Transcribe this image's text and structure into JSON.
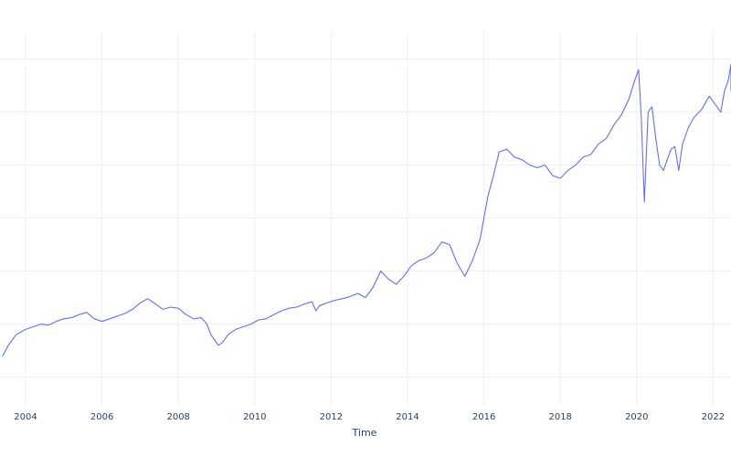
{
  "chart_data": {
    "type": "line",
    "title": "",
    "xlabel": "Time",
    "ylabel": "",
    "x_tick_labels": [
      "2004",
      "2006",
      "2008",
      "2010",
      "2012",
      "2014",
      "2016",
      "2018",
      "2020",
      "2022"
    ],
    "y_tick_labels_visible": false,
    "grid": true,
    "legend": "none",
    "colors": {
      "series": "#636efa",
      "grid": "#ebf0f8",
      "text": "#2a3f5f",
      "background": "#ffffff"
    },
    "xlim": [
      2003.35,
      2022.6
    ],
    "ylim": [
      0,
      700
    ],
    "y_gridlines": [
      30,
      130,
      230,
      330,
      430,
      530,
      630
    ],
    "series": [
      {
        "x": [
          2003.4,
          2003.55,
          2003.75,
          2004.0,
          2004.2,
          2004.4,
          2004.6,
          2004.8,
          2005.0,
          2005.2,
          2005.4,
          2005.6,
          2005.8,
          2006.0,
          2006.2,
          2006.4,
          2006.6,
          2006.8,
          2007.0,
          2007.2,
          2007.4,
          2007.6,
          2007.8,
          2008.0,
          2008.2,
          2008.4,
          2008.6,
          2008.75,
          2008.85,
          2008.95,
          2009.05,
          2009.15,
          2009.3,
          2009.5,
          2009.7,
          2009.9,
          2010.1,
          2010.3,
          2010.5,
          2010.7,
          2010.9,
          2011.1,
          2011.3,
          2011.5,
          2011.6,
          2011.7,
          2011.9,
          2012.1,
          2012.3,
          2012.5,
          2012.7,
          2012.9,
          2013.1,
          2013.3,
          2013.5,
          2013.7,
          2013.9,
          2014.1,
          2014.3,
          2014.5,
          2014.7,
          2014.9,
          2015.1,
          2015.3,
          2015.5,
          2015.7,
          2015.9,
          2016.1,
          2016.25,
          2016.4,
          2016.6,
          2016.8,
          2017.0,
          2017.2,
          2017.4,
          2017.6,
          2017.8,
          2018.0,
          2018.2,
          2018.4,
          2018.6,
          2018.8,
          2019.0,
          2019.2,
          2019.4,
          2019.6,
          2019.8,
          2019.95,
          2020.05,
          2020.12,
          2020.2,
          2020.3,
          2020.4,
          2020.5,
          2020.6,
          2020.7,
          2020.8,
          2020.9,
          2021.0,
          2021.1,
          2021.2,
          2021.35,
          2021.5,
          2021.7,
          2021.9,
          2022.1,
          2022.2,
          2022.3,
          2022.4,
          2022.5,
          2022.6
        ],
        "values": [
          70,
          90,
          110,
          120,
          125,
          130,
          128,
          135,
          140,
          142,
          148,
          152,
          140,
          135,
          140,
          145,
          150,
          158,
          170,
          178,
          168,
          158,
          162,
          160,
          148,
          140,
          142,
          130,
          110,
          100,
          90,
          95,
          110,
          120,
          125,
          130,
          138,
          140,
          148,
          155,
          160,
          162,
          168,
          172,
          155,
          165,
          170,
          175,
          178,
          182,
          188,
          180,
          200,
          230,
          215,
          205,
          220,
          240,
          250,
          255,
          265,
          285,
          280,
          245,
          220,
          250,
          290,
          370,
          410,
          455,
          460,
          445,
          440,
          430,
          425,
          430,
          410,
          405,
          420,
          430,
          445,
          450,
          470,
          480,
          505,
          525,
          555,
          590,
          610,
          520,
          360,
          530,
          540,
          480,
          430,
          420,
          440,
          460,
          465,
          420,
          470,
          500,
          520,
          535,
          560,
          540,
          530,
          570,
          590,
          620,
          570
        ]
      }
    ]
  }
}
